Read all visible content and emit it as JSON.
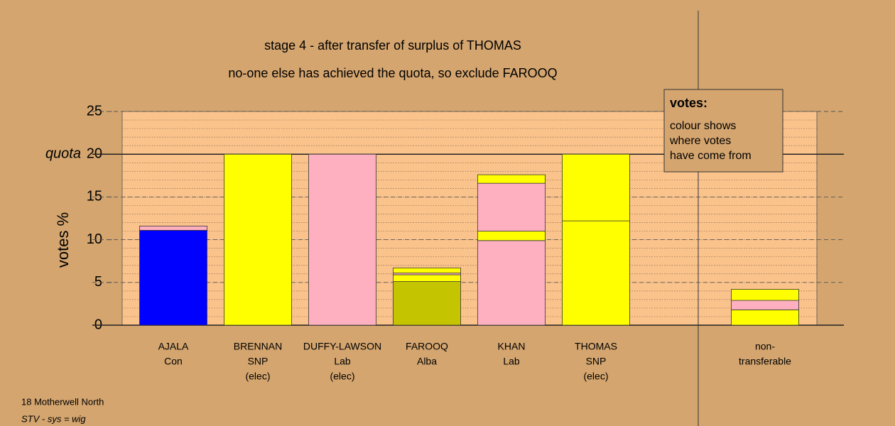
{
  "chart_data": {
    "type": "stacked-bar",
    "title": "stage 4 - after transfer of surplus of THOMAS",
    "subtitle": "no-one else has achieved the quota, so exclude FAROOQ",
    "y_label": "votes %",
    "quota": 20,
    "quota_label": "quota",
    "ylim": [
      0,
      25
    ],
    "yticks": [
      0,
      5,
      10,
      15,
      20,
      25
    ],
    "minor_grid_step": 1,
    "grid": true,
    "categories": [
      [
        "AJALA",
        "Con"
      ],
      [
        "BRENNAN",
        "SNP",
        "(elec)"
      ],
      [
        "DUFFY-LAWSON",
        "Lab",
        "(elec)"
      ],
      [
        "FAROOQ",
        "Alba"
      ],
      [
        "KHAN",
        "Lab"
      ],
      [
        "THOMAS",
        "SNP",
        "(elec)"
      ],
      null,
      [
        "non-",
        "transferable"
      ]
    ],
    "segments": [
      [
        {
          "color": "#0000ff",
          "value": 11.1
        },
        {
          "color": "#ffb0c0",
          "value": 0.5
        }
      ],
      [
        {
          "color": "#ffff00",
          "value": 20
        }
      ],
      [
        {
          "color": "#ffb0c0",
          "value": 20
        }
      ],
      [
        {
          "color": "#c4c400",
          "value": 5.1
        },
        {
          "color": "#ffff00",
          "value": 0.8
        },
        {
          "color": "#ffb0c0",
          "value": 0.2
        },
        {
          "color": "#ffff00",
          "value": 0.6
        }
      ],
      [
        {
          "color": "#ffb0c0",
          "value": 9.9
        },
        {
          "color": "#ffff00",
          "value": 1.1
        },
        {
          "color": "#ffb0c0",
          "value": 5.6
        },
        {
          "color": "#ffff00",
          "value": 1.0
        }
      ],
      [
        {
          "color": "#ffff00",
          "value": 12.2
        },
        {
          "color": "#ffff00",
          "value": 7.8
        }
      ],
      [],
      [
        {
          "color": "#ffff00",
          "value": 1.8
        },
        {
          "color": "#ffb0c0",
          "value": 1.1
        },
        {
          "color": "#ffff00",
          "value": 1.3
        }
      ]
    ],
    "legend": {
      "title": "votes:",
      "lines": [
        "colour shows",
        "where votes",
        "have come from"
      ]
    },
    "footer": [
      "18 Motherwell North",
      "STV - sys = wig"
    ]
  }
}
